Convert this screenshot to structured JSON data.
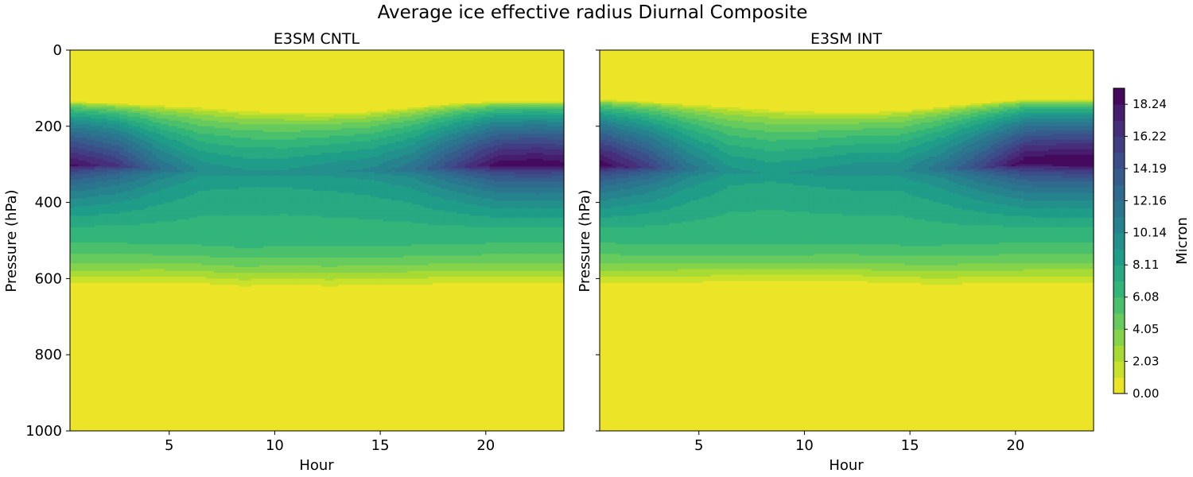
{
  "figure": {
    "title": "Average ice effective radius Diurnal Composite"
  },
  "chart_data": [
    {
      "type": "heatmap",
      "subtitle": "E3SM CNTL",
      "xlabel": "Hour",
      "ylabel": "Pressure (hPa)",
      "x_ticks": [
        5,
        10,
        15,
        20
      ],
      "y_ticks": [
        0,
        200,
        400,
        600,
        800,
        1000
      ],
      "xlim": [
        0.3,
        23.7
      ],
      "ylim": [
        1000,
        0
      ],
      "hours": [
        0.5,
        2.5,
        4.5,
        6.5,
        8.5,
        10.5,
        12.5,
        14.5,
        16.5,
        18.5,
        20.5,
        22.5,
        23.5
      ],
      "core_pressure_hPa": [
        305,
        305,
        315,
        320,
        325,
        325,
        320,
        320,
        315,
        310,
        305,
        305,
        305
      ],
      "core_max_micron": [
        18.5,
        16.5,
        12.5,
        10.0,
        9.5,
        9.5,
        10.0,
        10.5,
        12.0,
        15.5,
        19.0,
        19.5,
        19.0
      ],
      "cloud_top_hPa": [
        135,
        140,
        145,
        150,
        158,
        162,
        165,
        160,
        150,
        140,
        135,
        135,
        135
      ],
      "cloud_bottom_hPa": [
        625,
        625,
        622,
        625,
        632,
        628,
        632,
        630,
        628,
        625,
        625,
        625,
        625
      ]
    },
    {
      "type": "heatmap",
      "subtitle": "E3SM INT",
      "xlabel": "Hour",
      "ylabel": "Pressure (hPa)",
      "x_ticks": [
        5,
        10,
        15,
        20
      ],
      "y_ticks": [
        0,
        200,
        400,
        600,
        800,
        1000
      ],
      "xlim": [
        0.3,
        23.7
      ],
      "ylim": [
        1000,
        0
      ],
      "hours": [
        0.5,
        2.5,
        4.5,
        6.5,
        8.5,
        10.5,
        12.5,
        14.5,
        16.5,
        18.5,
        20.5,
        22.5,
        23.5
      ],
      "core_pressure_hPa": [
        305,
        310,
        315,
        320,
        325,
        325,
        320,
        320,
        315,
        310,
        300,
        300,
        300
      ],
      "core_max_micron": [
        19.0,
        16.0,
        12.0,
        9.5,
        9.0,
        9.5,
        10.0,
        10.0,
        12.0,
        15.5,
        19.5,
        20.0,
        20.0
      ],
      "cloud_top_hPa": [
        130,
        135,
        142,
        148,
        155,
        160,
        162,
        158,
        148,
        138,
        130,
        130,
        130
      ],
      "cloud_bottom_hPa": [
        625,
        625,
        622,
        620,
        620,
        618,
        620,
        625,
        628,
        625,
        625,
        625,
        625
      ]
    }
  ],
  "colorbar": {
    "label": "Micron",
    "tick_labels": [
      "0.00",
      "2.03",
      "4.05",
      "6.08",
      "8.11",
      "10.14",
      "12.16",
      "14.19",
      "16.22",
      "18.24"
    ],
    "tick_values": [
      0.0,
      2.03,
      4.05,
      6.08,
      8.11,
      10.14,
      12.16,
      14.19,
      16.22,
      18.24
    ],
    "vmin": 0,
    "vmax": 19.25,
    "levels": 19,
    "colormap": "viridis_r"
  }
}
